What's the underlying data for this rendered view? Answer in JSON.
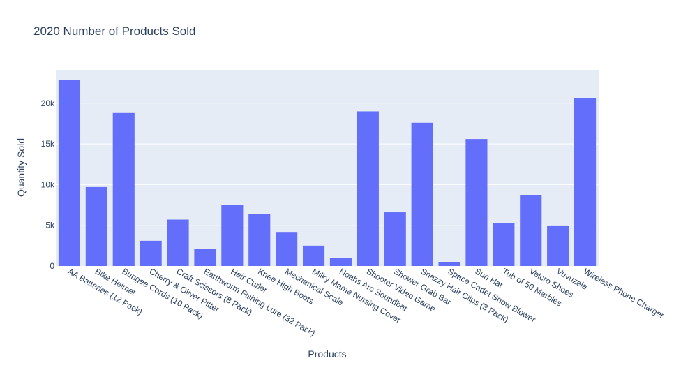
{
  "chart_data": {
    "type": "bar",
    "title": "2020 Number of Products Sold",
    "xlabel": "Products",
    "ylabel": "Quantity Sold",
    "categories": [
      "AA Batteries (12 Pack)",
      "Bike Helmet",
      "Bungee Cords (10 Pack)",
      "Cherry & Oliver Pitter",
      "Craft Scissors (8 Pack)",
      "Earthworm Fishing Lure (32 Pack)",
      "Hair Curler",
      "Knee High Boots",
      "Mechanical Scale",
      "Milky Mama Nursing Cover",
      "Noahs Arc Soundbar",
      "Shooter Video Game",
      "Shower Grab Bar",
      "Snazzy Hair Clips (3 Pack)",
      "Space Cadet Snow Blower",
      "Sun Hat",
      "Tub of 50 Marbles",
      "Velcro Shoes",
      "Vuvuzela",
      "Wireless Phone Charger"
    ],
    "values": [
      22900,
      9700,
      18800,
      3100,
      5700,
      2100,
      7500,
      6400,
      4100,
      2500,
      1000,
      19000,
      6600,
      17600,
      500,
      15600,
      5300,
      8700,
      4900,
      20600
    ],
    "ylim": [
      0,
      24100
    ],
    "yticks": [
      0,
      5000,
      10000,
      15000,
      20000
    ],
    "ytick_labels": [
      "0",
      "5k",
      "10k",
      "15k",
      "20k"
    ],
    "grid": true,
    "colors": {
      "bar": "#636efa",
      "plot_bg": "#e5ecf6",
      "grid": "#ffffff",
      "text": "#2a3f5f"
    }
  }
}
